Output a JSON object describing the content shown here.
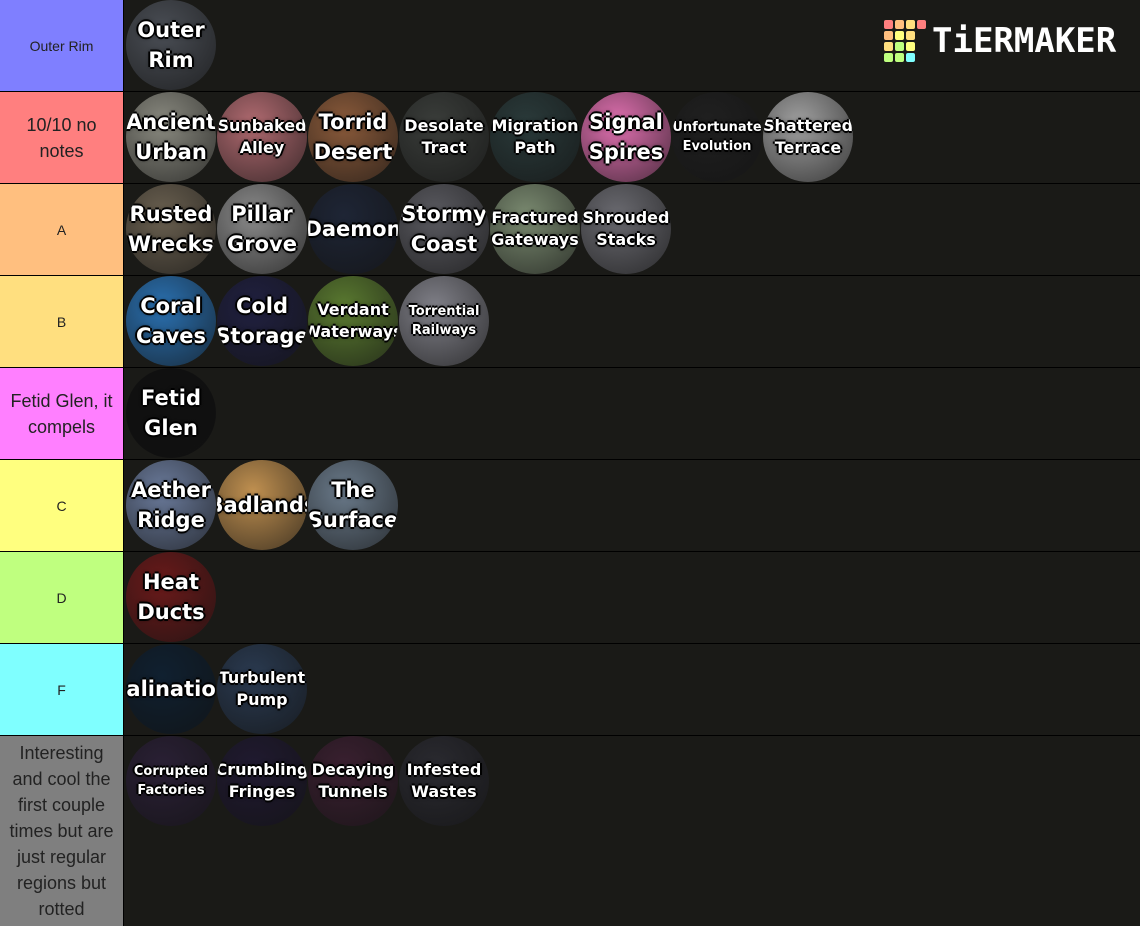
{
  "logo": {
    "text": "TiERMAKER"
  },
  "tiers": [
    {
      "label": "Outer Rim",
      "color": "#7f7fff",
      "items": [
        {
          "label": "Outer Rim",
          "color": "#4a4e55"
        }
      ]
    },
    {
      "label": "10/10 no notes",
      "color": "#ff7f7f",
      "items": [
        {
          "label": "Ancient Urban",
          "color": "#8a8a80"
        },
        {
          "label": "Sunbaked Alley",
          "color": "#b06a70"
        },
        {
          "label": "Torrid Desert",
          "color": "#8a5a3a"
        },
        {
          "label": "Desolate Tract",
          "color": "#3a3d3a"
        },
        {
          "label": "Migration Path",
          "color": "#2a3a3a"
        },
        {
          "label": "Signal Spires",
          "color": "#e070b0"
        },
        {
          "label": "Unfortunate Evolution",
          "color": "#202020"
        },
        {
          "label": "Shattered Terrace",
          "color": "#a0a0a0"
        }
      ]
    },
    {
      "label": "A",
      "color": "#ffbf7f",
      "items": [
        {
          "label": "Rusted Wrecks",
          "color": "#6a6050"
        },
        {
          "label": "Pillar Grove",
          "color": "#8a8a8a"
        },
        {
          "label": "Daemon",
          "color": "#1e2535"
        },
        {
          "label": "Stormy Coast",
          "color": "#5a5a60"
        },
        {
          "label": "Fractured Gateways",
          "color": "#7a8a70"
        },
        {
          "label": "Shrouded Stacks",
          "color": "#6a6a70"
        }
      ]
    },
    {
      "label": "B",
      "color": "#ffdf7f",
      "items": [
        {
          "label": "Coral Caves",
          "color": "#2a70b0"
        },
        {
          "label": "Cold Storage",
          "color": "#202040"
        },
        {
          "label": "Verdant Waterways",
          "color": "#5a7a30"
        },
        {
          "label": "Torrential Railways",
          "color": "#808088"
        }
      ]
    },
    {
      "label": "Fetid Glen, it compels",
      "color": "#ff7fff",
      "items": [
        {
          "label": "Fetid Glen",
          "color": "#101010"
        }
      ]
    },
    {
      "label": "C",
      "color": "#ffff7f",
      "items": [
        {
          "label": "Aether Ridge",
          "color": "#6a7a9a"
        },
        {
          "label": "Badlands",
          "color": "#c09050"
        },
        {
          "label": "The Surface",
          "color": "#6a7a8a"
        }
      ]
    },
    {
      "label": "D",
      "color": "#bfff7f",
      "items": [
        {
          "label": "Heat Ducts",
          "color": "#6a1a1a"
        }
      ]
    },
    {
      "label": "F",
      "color": "#7fffff",
      "items": [
        {
          "label": "Salination",
          "color": "#102030"
        },
        {
          "label": "Turbulent Pump",
          "color": "#2a3a50"
        }
      ]
    },
    {
      "label": "Interesting and cool the first couple times but are just regular regions but rotted",
      "color": "#7f7f7f",
      "items": [
        {
          "label": "Corrupted Factories",
          "color": "#2a2035"
        },
        {
          "label": "Crumbling Fringes",
          "color": "#201a30"
        },
        {
          "label": "Decaying Tunnels",
          "color": "#3a2030"
        },
        {
          "label": "Infested Wastes",
          "color": "#2a2a30"
        }
      ]
    }
  ]
}
